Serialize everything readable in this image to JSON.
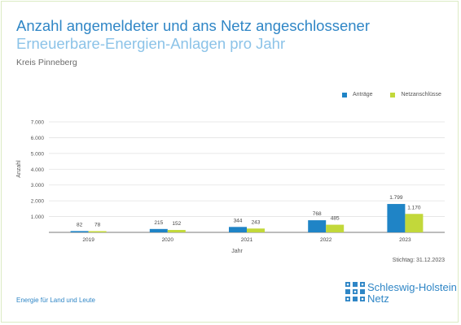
{
  "header": {
    "title_line1": "Anzahl angemeldeter und ans Netz angeschlossener",
    "title_line2": "Erneuerbare-Energien-Anlagen pro Jahr",
    "subtitle": "Kreis Pinneberg"
  },
  "footer": {
    "stichtag": "Stichtag: 31.12.2023",
    "tagline": "Energie für Land und Leute",
    "logo_line1": "Schleswig-Holstein",
    "logo_line2": "Netz"
  },
  "colors": {
    "antraege": "#1f84c6",
    "netzanschluesse": "#c2d83a",
    "title": "#2f86c6",
    "title_light": "#8cc3e8"
  },
  "chart_data": {
    "type": "bar",
    "xlabel": "Jahr",
    "ylabel": "Anzahl",
    "ylim": [
      0,
      7000
    ],
    "yticks": [
      1000,
      2000,
      3000,
      4000,
      5000,
      6000,
      7000
    ],
    "ytick_labels": [
      "1.000",
      "2.000",
      "3.000",
      "4.000",
      "5.000",
      "6.000",
      "7.000"
    ],
    "grid": true,
    "legend_position": "top-right",
    "categories": [
      "2019",
      "2020",
      "2021",
      "2022",
      "2023"
    ],
    "series": [
      {
        "name": "Anträge",
        "values": [
          82,
          215,
          344,
          768,
          1799
        ],
        "labels": [
          "82",
          "215",
          "344",
          "768",
          "1.799"
        ]
      },
      {
        "name": "Netzanschlüsse",
        "values": [
          78,
          152,
          243,
          485,
          1170
        ],
        "labels": [
          "78",
          "152",
          "243",
          "485",
          "1.170"
        ]
      }
    ]
  }
}
